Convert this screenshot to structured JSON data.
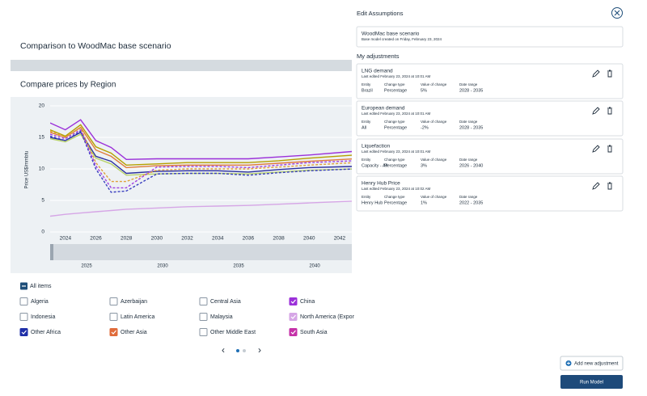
{
  "panel": {
    "title": "Comparison to WoodMac base scenario"
  },
  "chart": {
    "type": "line",
    "title": "Compare prices by Region",
    "y_label": "Price US$/mmbtu",
    "x": [
      2023,
      2024,
      2025,
      2026,
      2027,
      2028,
      2030,
      2032,
      2034,
      2036,
      2038,
      2040,
      2043
    ],
    "xlim": [
      2023,
      2042.8
    ],
    "xticks": [
      2024,
      2026,
      2028,
      2030,
      2032,
      2034,
      2036,
      2038,
      2040,
      2042
    ],
    "ylim": [
      0,
      20
    ],
    "yticks": [
      0,
      5,
      10,
      15,
      20
    ],
    "grid": true,
    "navigator_ticks": [
      2025,
      2030,
      2035,
      2040
    ],
    "series": [
      {
        "color": "#9b30d9",
        "dashed": false,
        "values": [
          17.3,
          16.2,
          17.8,
          14.5,
          13.4,
          11.5,
          11.6,
          11.6,
          11.6,
          11.6,
          11.9,
          12.2,
          12.8
        ]
      },
      {
        "color": "#b5a000",
        "dashed": false,
        "values": [
          16.2,
          15.2,
          17,
          13.5,
          12.5,
          10.6,
          10.8,
          11,
          11,
          11,
          11.3,
          11.7,
          12.2
        ]
      },
      {
        "color": "#e07b3a",
        "dashed": false,
        "values": [
          15.8,
          15,
          16.6,
          13,
          12,
          10.2,
          10.5,
          10.6,
          10.6,
          10.6,
          10.9,
          11.2,
          11.6
        ]
      },
      {
        "color": "#2a2f9e",
        "dashed": false,
        "values": [
          15,
          14.5,
          15.8,
          12,
          11.2,
          9.3,
          9.6,
          9.7,
          9.7,
          9.5,
          9.9,
          10.2,
          10.4
        ]
      },
      {
        "color": "#b9d36a",
        "dashed": false,
        "values": [
          14.8,
          14.3,
          15.5,
          11.7,
          10.8,
          9,
          9.2,
          9.3,
          9.3,
          9.2,
          9.5,
          9.8,
          10
        ]
      },
      {
        "color": "#e0a03a",
        "dashed": true,
        "values": [
          16,
          15,
          16.5,
          11,
          8,
          8,
          9.8,
          10,
          10,
          10,
          10.3,
          10.6,
          11
        ]
      },
      {
        "color": "#3a3fc0",
        "dashed": true,
        "values": [
          15.2,
          14.5,
          16,
          10,
          6.3,
          6.5,
          9.2,
          9.3,
          9.3,
          9,
          9.4,
          9.7,
          10
        ]
      },
      {
        "color": "#a040e0",
        "dashed": true,
        "values": [
          15.5,
          14.8,
          16.2,
          10.5,
          7,
          7,
          10.3,
          10.4,
          10.4,
          10.2,
          10.6,
          11,
          11.3
        ]
      },
      {
        "color": "#d6a6e6",
        "dashed": false,
        "values": [
          2.5,
          2.8,
          3,
          3.2,
          3.4,
          3.6,
          3.8,
          4,
          4.1,
          4.2,
          4.4,
          4.6,
          4.9
        ]
      }
    ]
  },
  "filters": {
    "all": "All items",
    "items": [
      {
        "label": "Algeria",
        "checked": false
      },
      {
        "label": "Azerbaijan",
        "checked": false
      },
      {
        "label": "Central Asia",
        "checked": false
      },
      {
        "label": "China",
        "checked": true,
        "color": "#9b30d9"
      },
      {
        "label": "Indonesia",
        "checked": false
      },
      {
        "label": "Latin America",
        "checked": false
      },
      {
        "label": "Malaysia",
        "checked": false
      },
      {
        "label": "North America (Expor",
        "checked": true,
        "color": "#d6a6e6"
      },
      {
        "label": "Other Africa",
        "checked": true,
        "color": "#1f2fa8"
      },
      {
        "label": "Other Asia",
        "checked": true,
        "color": "#e06b3a"
      },
      {
        "label": "Other Middle East",
        "checked": false
      },
      {
        "label": "South Asia",
        "checked": true,
        "color": "#c531a8"
      }
    ]
  },
  "assumptions": {
    "title": "Edit Assumptions",
    "base": {
      "title": "WoodMac base scenario",
      "subtitle": "Base model created on Friday, February 23, 2024"
    },
    "heading": "My adjustments",
    "field_labels": [
      "Entity",
      "Change type",
      "Value of change",
      "Date range"
    ],
    "cards": [
      {
        "title": "LNG demand",
        "edited": "Last edited February 23, 2024 at 10:01 AM",
        "values": [
          "Brazil",
          "Percentage",
          "5%",
          "2028 - 2035"
        ]
      },
      {
        "title": "European demand",
        "edited": "Last edited February 23, 2024 at 10:01 AM",
        "values": [
          "All",
          "Percentage",
          "-2%",
          "2028 - 2035"
        ]
      },
      {
        "title": "Liquefaction",
        "edited": "Last edited February 23, 2024 at 10:01 AM",
        "values": [
          "Capacity - All",
          "Percentage",
          "3%",
          "2026 - 2040"
        ]
      },
      {
        "title": "Henry Hub Price",
        "edited": "Last edited February 23, 2024 at 10:02 AM",
        "values": [
          "Henry Hub",
          "Percentage",
          "1%",
          "2022 - 2035"
        ]
      }
    ]
  },
  "buttons": {
    "add": "Add new adjustment",
    "run": "Run Model"
  }
}
